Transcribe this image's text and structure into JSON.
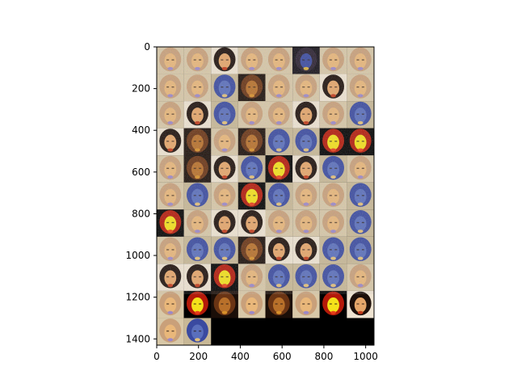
{
  "chart_data": {
    "type": "heatmap",
    "title": "",
    "xlabel": "",
    "ylabel": "",
    "xlim": [
      0,
      1040
    ],
    "ylim": [
      1430,
      0
    ],
    "xticks": [
      0,
      200,
      400,
      600,
      800,
      1000
    ],
    "yticks": [
      0,
      200,
      400,
      600,
      800,
      1000,
      1200,
      1400
    ],
    "grid": false,
    "legend": "none",
    "image_grid": {
      "columns": 8,
      "rows": 11,
      "tile_size": 130,
      "filled_tiles": 82,
      "empty_fill": "#000000",
      "tile_palettes": [
        "bright",
        "bright",
        "dark-hair",
        "bright",
        "bright",
        "dark-blue",
        "bright",
        "bright",
        "bright",
        "bright",
        "blue",
        "dark-orange",
        "bright",
        "bright",
        "dark-hair",
        "bright",
        "bright",
        "dark-hair",
        "blue",
        "bright",
        "bright",
        "dark-hair",
        "bright",
        "blue",
        "dark-hair",
        "dark-orange",
        "bright",
        "dark-orange",
        "blue",
        "blue",
        "red-yellow",
        "red-yellow",
        "bright",
        "dark-orange",
        "dark-hair",
        "blue",
        "red-yellow",
        "dark-hair",
        "blue",
        "bright",
        "bright",
        "blue",
        "bright",
        "red-yellow",
        "blue",
        "bright",
        "bright",
        "blue",
        "red-yellow",
        "bright",
        "dark-hair",
        "dark-hair",
        "bright",
        "bright",
        "bright",
        "blue",
        "bright",
        "blue",
        "blue",
        "dark-orange",
        "dark-hair",
        "dark-hair",
        "blue",
        "blue",
        "dark-hair",
        "dark-hair",
        "red-yellow",
        "bright",
        "blue",
        "blue",
        "blue",
        "bright",
        "bright",
        "red-yellow",
        "dark-orange",
        "bright",
        "dark-orange",
        "bright",
        "red-yellow",
        "dark-hair",
        "bright",
        "blue"
      ]
    }
  }
}
